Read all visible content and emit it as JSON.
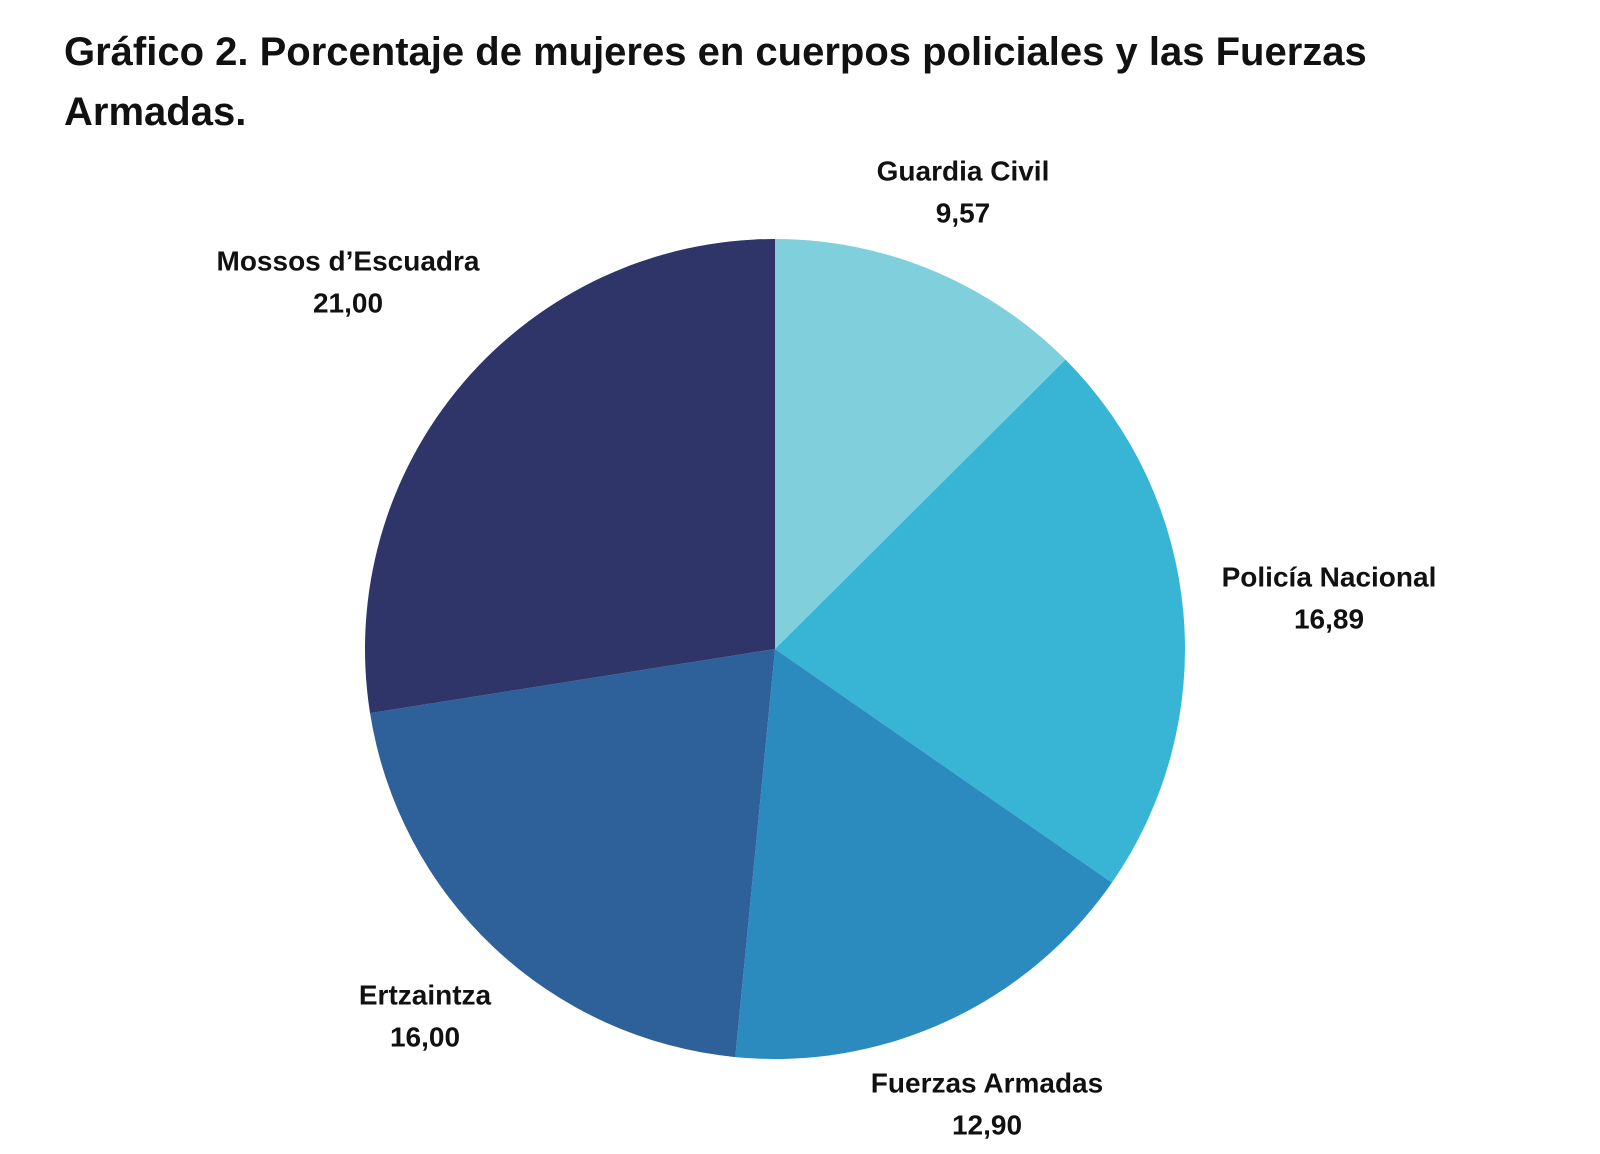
{
  "chart_data": {
    "type": "pie",
    "title": "Gráfico 2. Porcentaje de mujeres en cuerpos policiales y las Fuerzas Armadas.",
    "categories": [
      "Guardia Civil",
      "Policía Nacional",
      "Fuerzas Armadas",
      "Ertzaintza",
      "Mossos d’Escuadra"
    ],
    "values": [
      9.57,
      16.89,
      12.9,
      16.0,
      21.0
    ],
    "value_labels": [
      "9,57",
      "16,89",
      "12,90",
      "16,00",
      "21,00"
    ],
    "colors": [
      "#7fd0dc",
      "#38b5d5",
      "#2b8bbf",
      "#2e609a",
      "#2f3469"
    ]
  }
}
